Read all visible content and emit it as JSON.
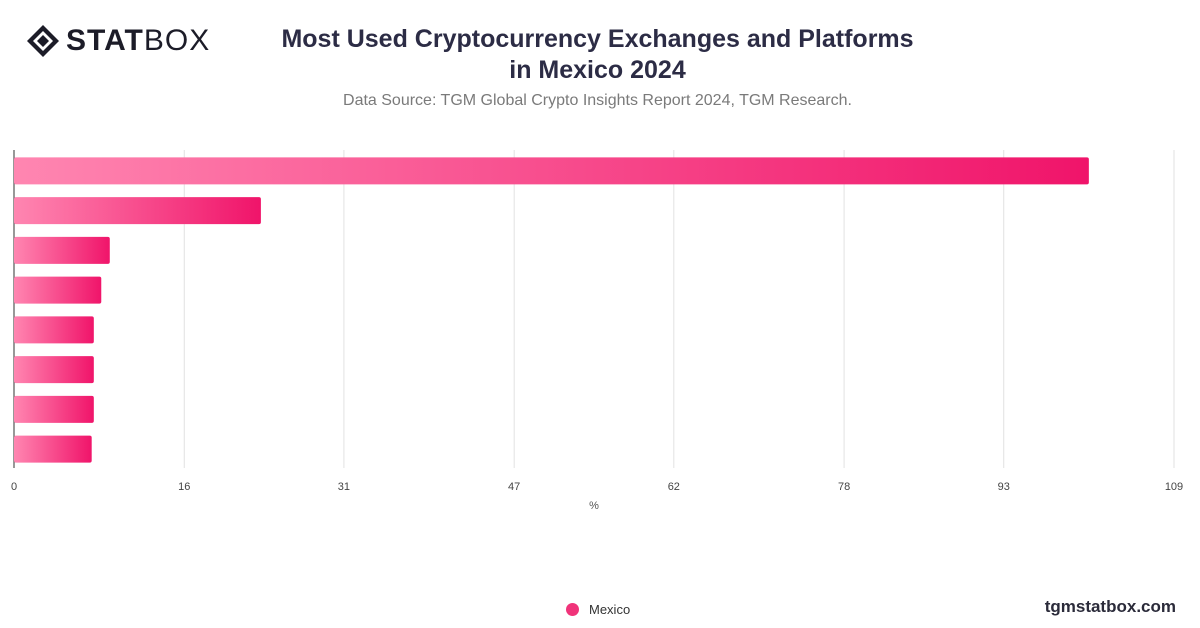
{
  "header": {
    "logo_bold": "STAT",
    "logo_light": "BOX",
    "title_line1": "Most Used Cryptocurrency Exchanges and Platforms",
    "title_line2": "in Mexico 2024",
    "subtitle": "Data Source: TGM Global Crypto Insights Report 2024, TGM Research."
  },
  "footer": {
    "brand": "tgmstatbox.com"
  },
  "colors": {
    "bar_start": "#ff86b1",
    "bar_end": "#f0146a",
    "legend_dot": "#f0337a",
    "grid": "#e2e2e2",
    "axis": "#555555"
  },
  "chart_data": {
    "type": "bar",
    "orientation": "horizontal",
    "title": "Most Used Cryptocurrency Exchanges and Platforms in Mexico 2024",
    "subtitle": "Data Source: TGM Global Crypto Insights Report 2024, TGM Research.",
    "xlabel": "%",
    "ylabel": "",
    "xlim": [
      0,
      109
    ],
    "ticks": [
      0,
      16,
      31,
      47,
      62,
      78,
      93,
      109
    ],
    "categories": [
      "",
      "",
      "",
      "",
      "",
      "",
      "",
      ""
    ],
    "series": [
      {
        "name": "Mexico",
        "values": [
          101,
          23.2,
          9,
          8.2,
          7.5,
          7.5,
          7.5,
          7.3
        ]
      }
    ],
    "grid": true,
    "legend_position": "bottom-center"
  }
}
